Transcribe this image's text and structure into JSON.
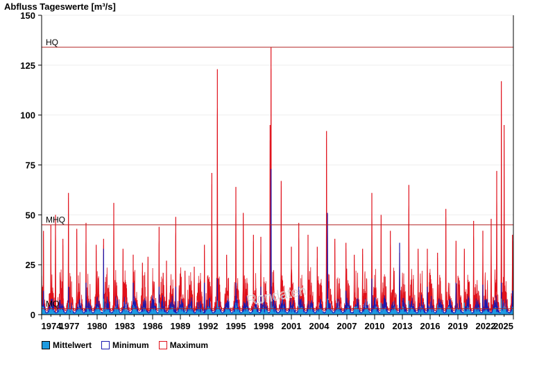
{
  "chart_data": {
    "type": "area",
    "title": "Abfluss Tageswerte [m³/s]",
    "xlabel": "",
    "ylabel": "",
    "xlim": [
      1974.0,
      2025.0
    ],
    "ylim": [
      0,
      150
    ],
    "y_ticks": [
      0,
      25,
      50,
      75,
      100,
      125,
      150
    ],
    "x_ticks": [
      "1974",
      "1977",
      "1980",
      "1983",
      "1986",
      "1989",
      "1992",
      "1995",
      "1998",
      "2001",
      "2004",
      "2007",
      "2010",
      "2013",
      "2016",
      "2019",
      "2022",
      "2025"
    ],
    "grid": true,
    "legend": "bottom-left",
    "reference_lines": [
      {
        "label": "HQ",
        "value": 134
      },
      {
        "label": "MHQ",
        "value": 45
      },
      {
        "label": "MQ",
        "value": 3
      }
    ],
    "colors": {
      "mittelwert": "#1e9be0",
      "minimum": "#1a1ab0",
      "maximum": "#e0101a",
      "reference": "#b22222"
    },
    "watermark": "Rondaten",
    "series": [
      {
        "name": "Maximum",
        "x": [
          1974.2,
          1975.0,
          1975.5,
          1976.3,
          1976.9,
          1977.8,
          1978.8,
          1979.9,
          1980.7,
          1981.8,
          1982.8,
          1983.9,
          1984.9,
          1985.5,
          1986.7,
          1987.5,
          1988.5,
          1989.5,
          1990.5,
          1991.6,
          1992.4,
          1993.0,
          1994.0,
          1995.0,
          1995.8,
          1996.9,
          1997.7,
          1998.7,
          1998.8,
          1999.9,
          2001.0,
          2001.8,
          2002.8,
          2003.8,
          2004.8,
          2004.9,
          2005.7,
          2006.9,
          2007.8,
          2008.7,
          2009.7,
          2010.7,
          2011.7,
          2012.7,
          2013.7,
          2014.7,
          2015.7,
          2016.8,
          2017.7,
          2018.8,
          2019.7,
          2020.7,
          2021.7,
          2022.6,
          2023.2,
          2023.7,
          2024.0,
          2024.9
        ],
        "values": [
          42,
          45,
          50,
          38,
          61,
          43,
          46,
          35,
          38,
          56,
          33,
          30,
          26,
          29,
          44,
          27,
          49,
          22,
          24,
          35,
          71,
          123,
          30,
          64,
          51,
          40,
          39,
          95,
          134,
          67,
          34,
          46,
          40,
          34,
          92,
          50,
          38,
          36,
          30,
          33,
          61,
          50,
          42,
          31,
          65,
          33,
          33,
          31,
          53,
          37,
          33,
          47,
          42,
          48,
          72,
          117,
          95,
          40
        ]
      },
      {
        "name": "Minimum",
        "x": [
          1974.2,
          1976.9,
          1978.8,
          1980.7,
          1983.9,
          1986.7,
          1988.5,
          1991.6,
          1993.0,
          1995.0,
          1997.7,
          1998.8,
          2001.8,
          2004.9,
          2006.9,
          2009.7,
          2012.7,
          2015.7,
          2018.8,
          2021.7,
          2023.7,
          2024.9
        ],
        "values": [
          12,
          14,
          16,
          33,
          16,
          14,
          14,
          16,
          18,
          16,
          14,
          73,
          14,
          51,
          12,
          18,
          36,
          14,
          16,
          15,
          16,
          12
        ]
      },
      {
        "name": "Mittelwert",
        "x": [
          1974.2,
          1976.9,
          1980.7,
          1983.9,
          1986.7,
          1989.5,
          1993.0,
          1995.0,
          1998.8,
          2001.8,
          2004.9,
          2007.8,
          2010.7,
          2013.7,
          2016.8,
          2019.7,
          2023.7,
          2024.9
        ],
        "values": [
          4,
          6,
          8,
          5,
          6,
          4,
          7,
          6,
          9,
          5,
          8,
          4,
          6,
          7,
          5,
          6,
          8,
          4
        ]
      }
    ],
    "legend_entries": [
      "Mittelwert",
      "Minimum",
      "Maximum"
    ]
  }
}
